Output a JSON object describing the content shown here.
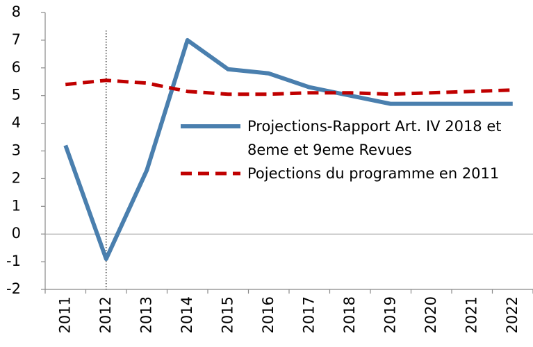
{
  "chart_data": {
    "type": "line",
    "categories": [
      "2011",
      "2012",
      "2013",
      "2014",
      "2015",
      "2016",
      "2017",
      "2018",
      "2019",
      "2020",
      "2021",
      "2022"
    ],
    "series": [
      {
        "name": "Projections-Rapport Art. IV 2018 et 8eme et 9eme Revues",
        "color": "#4a7fae",
        "dash": false,
        "values": [
          3.2,
          -0.9,
          2.3,
          7.0,
          5.95,
          5.8,
          5.3,
          5.0,
          4.7,
          4.7,
          4.7,
          4.7
        ]
      },
      {
        "name": "Pojections du programme en 2011",
        "color": "#c00000",
        "dash": true,
        "values": [
          5.4,
          5.55,
          5.45,
          5.15,
          5.05,
          5.05,
          5.1,
          5.1,
          5.05,
          5.1,
          5.15,
          5.2
        ]
      }
    ],
    "ylim": [
      -2,
      8
    ],
    "yticks": [
      -2,
      -1,
      0,
      1,
      2,
      3,
      4,
      5,
      6,
      7,
      8
    ],
    "grid": false,
    "legend": "right"
  }
}
